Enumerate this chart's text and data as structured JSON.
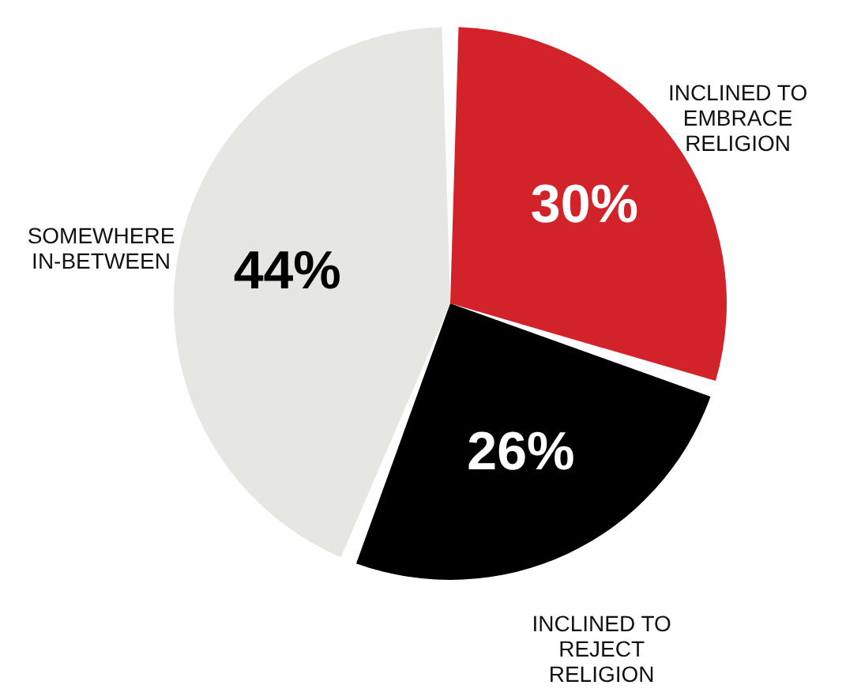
{
  "chart_data": {
    "type": "pie",
    "categories": [
      "INCLINED TO\nEMBRACE\nRELIGION",
      "INCLINED TO\nREJECT\nRELIGION",
      "SOMEWHERE\nIN-BETWEEN"
    ],
    "values": [
      30,
      26,
      44
    ],
    "colors": [
      "#d2232a",
      "#000000",
      "#e6e6e2"
    ],
    "value_labels": [
      "30%",
      "26%",
      "44%"
    ]
  }
}
